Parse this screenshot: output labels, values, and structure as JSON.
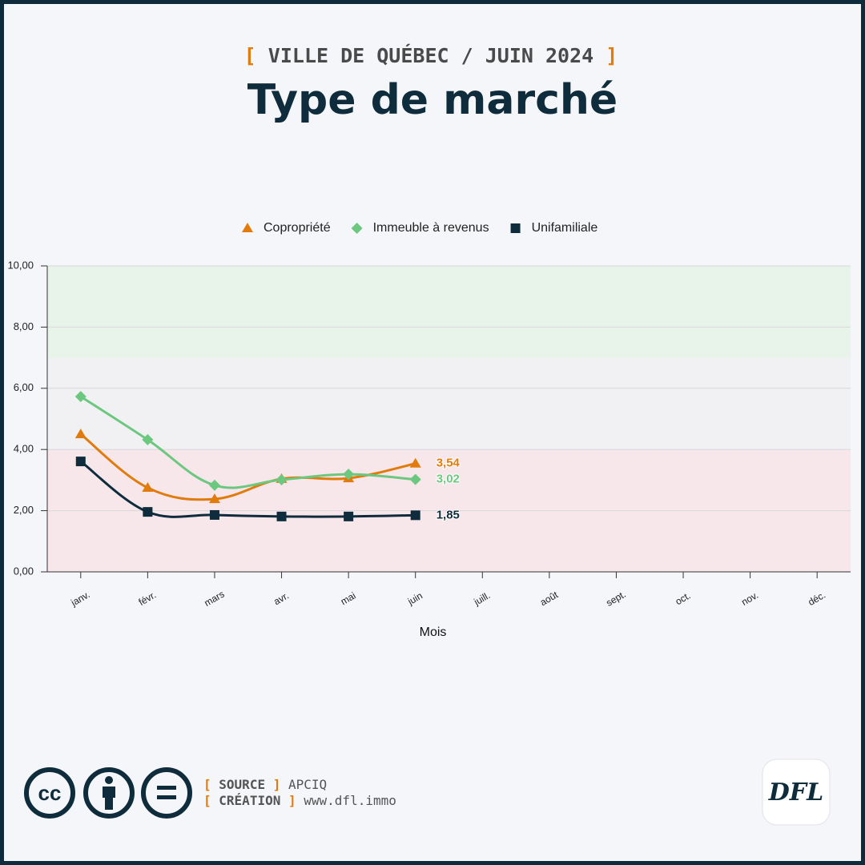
{
  "header": {
    "subtitle": "VILLE DE QUÉBEC / JUIN 2024",
    "title": "Type de marché",
    "brackets": [
      "[",
      "]"
    ]
  },
  "chart_data": {
    "type": "line",
    "categories": [
      "janv.",
      "févr.",
      "mars",
      "avr.",
      "mai",
      "juin",
      "juill.",
      "août",
      "sept.",
      "oct.",
      "nov.",
      "déc."
    ],
    "series": [
      {
        "name": "Copropriété",
        "color": "#e07b0c",
        "marker": "triangle",
        "values": [
          4.5,
          2.75,
          2.38,
          3.04,
          3.06,
          3.54,
          null,
          null,
          null,
          null,
          null,
          null
        ],
        "value_labels": [
          null,
          null,
          null,
          null,
          null,
          "3,54",
          null,
          null,
          null,
          null,
          null,
          null
        ]
      },
      {
        "name": "Immeuble à revenus",
        "color": "#6cc77f",
        "marker": "diamond",
        "values": [
          5.73,
          4.32,
          2.83,
          3.01,
          3.19,
          3.02,
          null,
          null,
          null,
          null,
          null,
          null
        ],
        "value_labels": [
          null,
          null,
          null,
          null,
          null,
          "3,02",
          null,
          null,
          null,
          null,
          null,
          null
        ]
      },
      {
        "name": "Unifamiliale",
        "color": "#0e2c3b",
        "marker": "square",
        "values": [
          3.61,
          1.96,
          1.86,
          1.81,
          1.81,
          1.85,
          null,
          null,
          null,
          null,
          null,
          null
        ],
        "value_labels": [
          null,
          null,
          null,
          null,
          null,
          "1,85",
          null,
          null,
          null,
          null,
          null,
          null
        ]
      }
    ],
    "ylim": [
      0,
      10
    ],
    "yticks": [
      {
        "value": 0,
        "label": "0,00"
      },
      {
        "value": 2,
        "label": "2,00"
      },
      {
        "value": 4,
        "label": "4,00"
      },
      {
        "value": 6,
        "label": "6,00"
      },
      {
        "value": 8,
        "label": "8,00"
      },
      {
        "value": 10,
        "label": "10,00"
      }
    ],
    "bands": [
      {
        "from": 0,
        "to": 4,
        "color": "#f7e6ea"
      },
      {
        "from": 4,
        "to": 7,
        "color": "#f1f1f4"
      },
      {
        "from": 7,
        "to": 10,
        "color": "#e8f3ea"
      }
    ],
    "xlabel": "Mois",
    "grid": true,
    "legend": "top"
  },
  "footer": {
    "source_label": "SOURCE",
    "source": "APCIQ",
    "creation_label": "CRÉATION",
    "creation": "www.dfl.immo",
    "logo": "DFL"
  }
}
